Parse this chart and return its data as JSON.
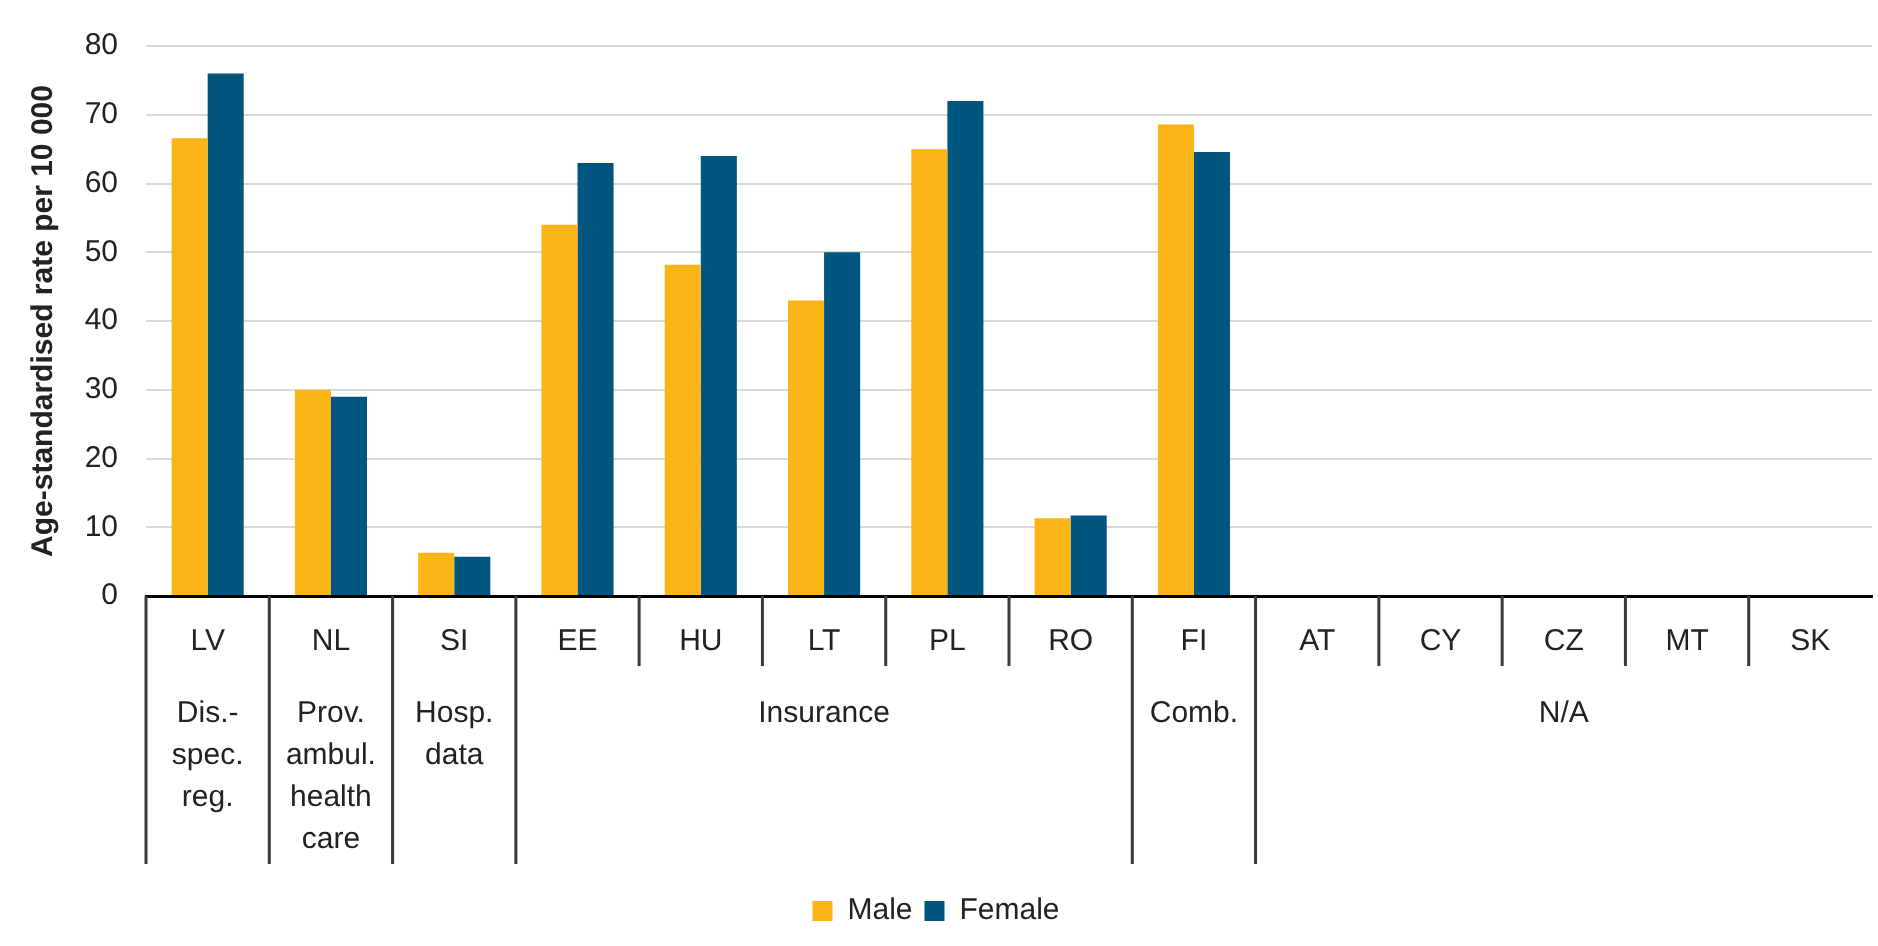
{
  "chart_data": {
    "type": "bar",
    "ylabel": "Age-standardised rate per 10 000",
    "categories": [
      "LV",
      "NL",
      "SI",
      "EE",
      "HU",
      "LT",
      "PL",
      "RO",
      "FI",
      "AT",
      "CY",
      "CZ",
      "MT",
      "SK"
    ],
    "series": [
      {
        "name": "Male",
        "color": "#fbb516",
        "values": [
          66.6,
          30,
          6.3,
          54,
          48.2,
          43,
          65,
          11.3,
          68.6,
          null,
          null,
          null,
          null,
          null
        ]
      },
      {
        "name": "Female",
        "color": "#00567f",
        "values": [
          76,
          29,
          5.7,
          63,
          64,
          50,
          72,
          11.7,
          64.6,
          null,
          null,
          null,
          null,
          null
        ]
      }
    ],
    "ylim": [
      0,
      80
    ],
    "yticks": [
      0,
      10,
      20,
      30,
      40,
      50,
      60,
      70,
      80
    ],
    "grid": "y",
    "legend": "bottom",
    "annotations": [
      "Dis.-spec. reg.",
      "Prov. ambul. health care",
      "Hosp. data",
      "Insurance",
      "Comb.",
      "N/A"
    ]
  }
}
